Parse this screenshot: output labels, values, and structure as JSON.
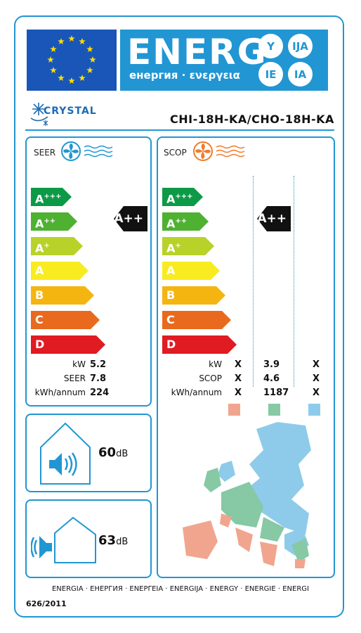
{
  "header": {
    "energy_word": "ENERG",
    "energy_sub": "енергия · ενεργεια",
    "suffixes": [
      "Y",
      "IJA",
      "IE",
      "IA"
    ]
  },
  "brand": {
    "name": "CRYSTAL"
  },
  "model": "CHI-18H-KA/CHO-18H-KA",
  "cooling": {
    "label": "SEER",
    "classes": [
      "A+++",
      "A++",
      "A+",
      "A",
      "B",
      "C",
      "D"
    ],
    "rating": "A++",
    "rows": [
      {
        "label": "kW",
        "value": "5.2"
      },
      {
        "label": "SEER",
        "value": "7.8"
      },
      {
        "label": "kWh/annum",
        "value": "224"
      }
    ]
  },
  "heating": {
    "label": "SCOP",
    "classes": [
      "A+++",
      "A++",
      "A+",
      "A",
      "B",
      "C",
      "D"
    ],
    "rating": "A++",
    "rows": [
      {
        "label": "kW",
        "values": [
          "X",
          "3.9",
          "X"
        ]
      },
      {
        "label": "SCOP",
        "values": [
          "X",
          "4.6",
          "X"
        ]
      },
      {
        "label": "kWh/annum",
        "values": [
          "X",
          "1187",
          "X"
        ]
      }
    ],
    "zone_colors": [
      "#f1a58e",
      "#86c9a4",
      "#8ecbea"
    ]
  },
  "noise": {
    "indoor": {
      "value": "60",
      "unit": "dB"
    },
    "outdoor": {
      "value": "63",
      "unit": "dB"
    }
  },
  "bar_colors": [
    "#0c9a46",
    "#4eb132",
    "#b8d22a",
    "#f8ec21",
    "#f5b511",
    "#e96a1e",
    "#e01b22"
  ],
  "footer": {
    "languages": "ENERGIA · ЕНЕРГИЯ · ΕΝΕΡΓΕΙΑ · ENERGIJA · ENERGY · ENERGIE · ENERGI",
    "regulation": "626/2011"
  }
}
